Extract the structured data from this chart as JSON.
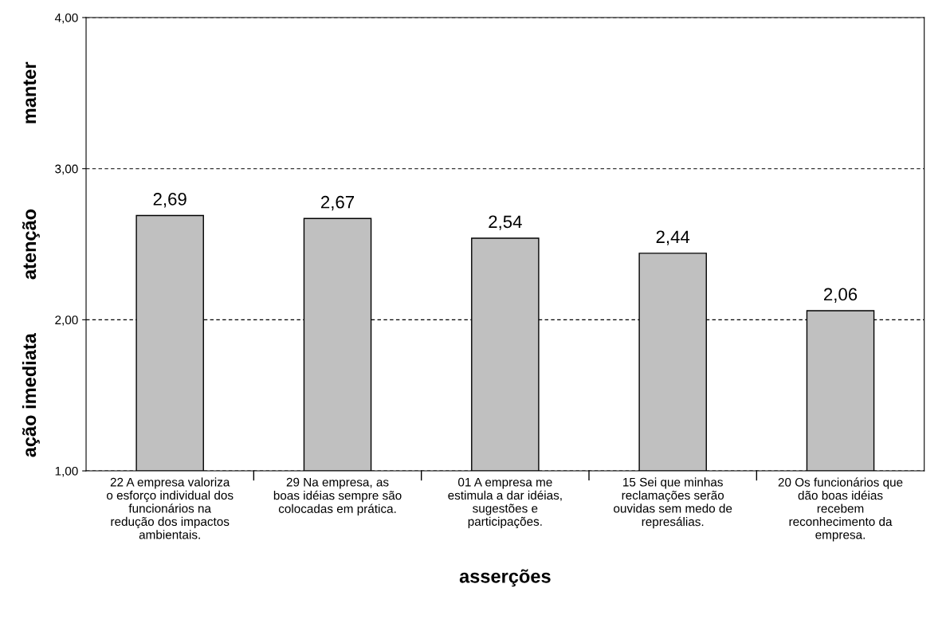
{
  "chart_data": {
    "type": "bar",
    "xlabel": "asserções",
    "categories": [
      "22 A empresa valoriza\no esforço individual dos\nfuncionários na\nredução dos impactos\nambientais.",
      "29 Na empresa, as\nboas idéias sempre são\ncolocadas em prática.",
      "01 A empresa me\nestimula a dar idéias,\nsugestões e\nparticipações.",
      "15 Sei que minhas\nreclamações serão\nouvidas sem medo de\nrepresálias.",
      "20 Os funcionários que\ndão boas idéias\nrecebem\nreconhecimento da\nempresa."
    ],
    "values": [
      2.69,
      2.67,
      2.54,
      2.44,
      2.06
    ],
    "value_labels": [
      "2,69",
      "2,67",
      "2,54",
      "2,44",
      "2,06"
    ],
    "color": "#c0c0c0",
    "ylim": [
      1,
      4
    ],
    "yticks": [
      {
        "value": 1,
        "label": "1,00"
      },
      {
        "value": 2,
        "label": "2,00"
      },
      {
        "value": 3,
        "label": "3,00"
      },
      {
        "value": 4,
        "label": "4,00"
      }
    ],
    "grid": "y",
    "annotations": [
      "ação imediata",
      "atenção",
      "manter"
    ]
  }
}
